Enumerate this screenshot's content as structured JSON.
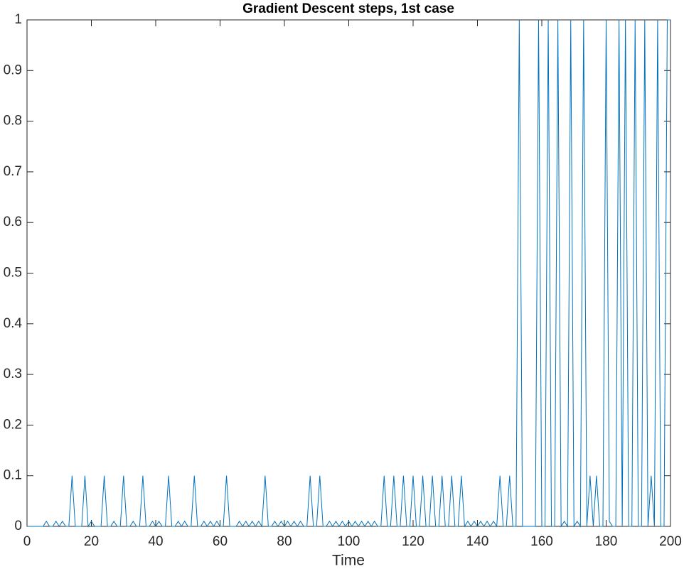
{
  "chart_data": {
    "type": "line",
    "title": "Gradient Descent steps, 1st case",
    "x_label": "Time",
    "x": [
      0,
      1,
      2,
      3,
      4,
      5,
      6,
      7,
      8,
      9,
      10,
      11,
      12,
      13,
      14,
      15,
      16,
      17,
      18,
      19,
      20,
      21,
      22,
      23,
      24,
      25,
      26,
      27,
      28,
      29,
      30,
      31,
      32,
      33,
      34,
      35,
      36,
      37,
      38,
      39,
      40,
      41,
      42,
      43,
      44,
      45,
      46,
      47,
      48,
      49,
      50,
      51,
      52,
      53,
      54,
      55,
      56,
      57,
      58,
      59,
      60,
      61,
      62,
      63,
      64,
      65,
      66,
      67,
      68,
      69,
      70,
      71,
      72,
      73,
      74,
      75,
      76,
      77,
      78,
      79,
      80,
      81,
      82,
      83,
      84,
      85,
      86,
      87,
      88,
      89,
      90,
      91,
      92,
      93,
      94,
      95,
      96,
      97,
      98,
      99,
      100,
      101,
      102,
      103,
      104,
      105,
      106,
      107,
      108,
      109,
      110,
      111,
      112,
      113,
      114,
      115,
      116,
      117,
      118,
      119,
      120,
      121,
      122,
      123,
      124,
      125,
      126,
      127,
      128,
      129,
      130,
      131,
      132,
      133,
      134,
      135,
      136,
      137,
      138,
      139,
      140,
      141,
      142,
      143,
      144,
      145,
      146,
      147,
      148,
      149,
      150,
      151,
      152,
      153,
      154,
      155,
      156,
      157,
      158,
      159,
      160,
      161,
      162,
      163,
      164,
      165,
      166,
      167,
      168,
      169,
      170,
      171,
      172,
      173,
      174,
      175,
      176,
      177,
      178,
      179,
      180,
      181,
      182,
      183,
      184,
      185,
      186,
      187,
      188,
      189,
      190,
      191,
      192,
      193,
      194,
      195,
      196,
      197,
      198,
      199,
      200
    ],
    "values": [
      0,
      0,
      0,
      0,
      0,
      0,
      0.01,
      0,
      0,
      0.01,
      0,
      0.01,
      0,
      0,
      0.1,
      0,
      0,
      0,
      0.1,
      0,
      0.01,
      0,
      0,
      0,
      0.1,
      0,
      0,
      0.01,
      0,
      0,
      0.1,
      0,
      0,
      0.01,
      0,
      0,
      0.1,
      0,
      0,
      0.01,
      0,
      0.01,
      0,
      0,
      0.1,
      0,
      0,
      0.01,
      0,
      0.01,
      0,
      0,
      0.1,
      0,
      0,
      0.01,
      0,
      0.01,
      0,
      0.01,
      0,
      0,
      0.1,
      0,
      0,
      0,
      0.01,
      0,
      0.01,
      0,
      0.01,
      0,
      0.01,
      0,
      0.1,
      0,
      0,
      0.01,
      0,
      0.01,
      0,
      0.01,
      0,
      0.01,
      0,
      0.01,
      0,
      0,
      0.1,
      0,
      0,
      0.1,
      0,
      0,
      0.01,
      0,
      0.01,
      0,
      0.01,
      0,
      0.01,
      0,
      0.01,
      0,
      0.01,
      0,
      0.01,
      0,
      0.01,
      0,
      0,
      0.1,
      0,
      0,
      0.1,
      0,
      0,
      0.1,
      0,
      0,
      0.1,
      0,
      0,
      0.1,
      0,
      0,
      0.1,
      0,
      0,
      0.1,
      0,
      0,
      0.1,
      0,
      0,
      0.1,
      0,
      0.01,
      0,
      0.01,
      0,
      0.01,
      0,
      0.01,
      0,
      0.01,
      0,
      0.1,
      0,
      0,
      0.1,
      0,
      0,
      1,
      0,
      0,
      0,
      0,
      0,
      1,
      0,
      0,
      1,
      0,
      0,
      1,
      0,
      0.01,
      0,
      1,
      0,
      0.01,
      0,
      1,
      0,
      0.1,
      0,
      0.1,
      0,
      0,
      1,
      0.01,
      0,
      0,
      1,
      0,
      1,
      0,
      0,
      1,
      0,
      0,
      1,
      0,
      0.1,
      0,
      1,
      0,
      0,
      1,
      1
    ],
    "color": "#0072BD",
    "xlim": [
      0,
      200
    ],
    "xticks": [
      0,
      20,
      40,
      60,
      80,
      100,
      120,
      140,
      160,
      180,
      200
    ],
    "ylim": [
      0,
      1
    ],
    "yticks": [
      0,
      0.1,
      0.2,
      0.3,
      0.4,
      0.5,
      0.6,
      0.7,
      0.8,
      0.9,
      1
    ],
    "grid": false
  }
}
